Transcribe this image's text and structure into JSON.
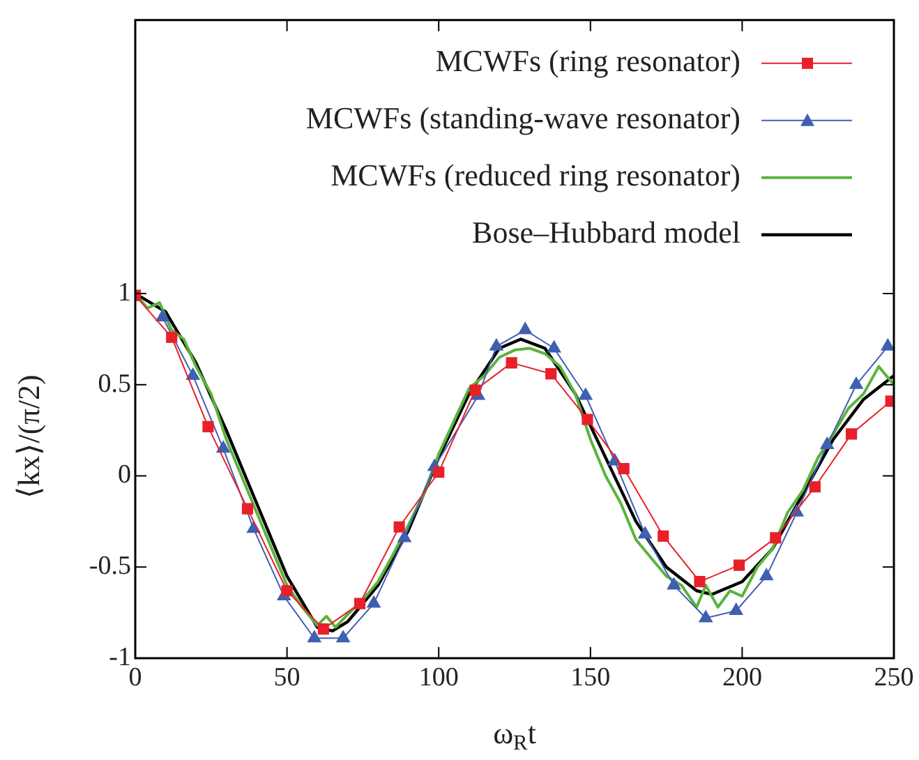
{
  "chart_data": {
    "type": "line",
    "xlabel": "ω$_{R}$t",
    "ylabel": "⟨kx⟩/(π/2)",
    "xlim": [
      0,
      250
    ],
    "xticks": [
      0,
      50,
      100,
      150,
      200,
      250
    ],
    "ylim": [
      -1,
      2.5
    ],
    "yticks": [
      -1,
      -0.5,
      0,
      0.5,
      1
    ],
    "grid": false,
    "legend": "top right",
    "series": [
      {
        "name": "MCWFs (ring resonator)",
        "color": "#e8202a",
        "marker": "square",
        "x": [
          0,
          12,
          24,
          37,
          50,
          62,
          74,
          87,
          100,
          112,
          124,
          137,
          149,
          161,
          174,
          186,
          199,
          211,
          224,
          236,
          249
        ],
        "values": [
          0.99,
          0.76,
          0.27,
          -0.18,
          -0.63,
          -0.84,
          -0.7,
          -0.28,
          0.02,
          0.47,
          0.62,
          0.56,
          0.31,
          0.04,
          -0.33,
          -0.58,
          -0.49,
          -0.34,
          -0.06,
          0.23,
          0.41
        ]
      },
      {
        "name": "MCWFs (standing-wave resonator)",
        "color": "#3f5fb0",
        "marker": "triangle",
        "x": [
          9,
          19,
          29,
          39,
          49,
          59,
          68.5,
          78.6,
          88.7,
          98.6,
          113,
          119,
          128.5,
          138,
          148.4,
          158,
          168,
          177.5,
          188,
          198,
          208,
          218,
          228,
          237.6,
          248
        ],
        "values": [
          0.87,
          0.55,
          0.15,
          -0.29,
          -0.66,
          -0.89,
          -0.89,
          -0.7,
          -0.34,
          0.05,
          0.44,
          0.71,
          0.8,
          0.7,
          0.44,
          0.08,
          -0.32,
          -0.6,
          -0.78,
          -0.74,
          -0.55,
          -0.2,
          0.17,
          0.5,
          0.71
        ]
      },
      {
        "name": "MCWFs (reduced ring resonator)",
        "color": "#5ab43c",
        "marker": "none",
        "x": [
          0,
          4,
          8,
          12,
          16,
          20,
          25,
          30,
          35,
          40,
          45,
          50,
          55,
          60,
          63,
          66,
          70,
          75,
          80,
          85,
          90,
          95,
          100,
          105,
          110,
          115,
          120,
          125,
          130,
          135,
          140,
          145,
          150,
          155,
          160,
          165,
          170,
          175,
          180,
          185,
          188,
          192,
          196,
          200,
          205,
          210,
          215,
          220,
          225,
          230,
          235,
          240,
          245,
          250
        ],
        "values": [
          1,
          0.92,
          0.95,
          0.8,
          0.75,
          0.6,
          0.45,
          0.2,
          0,
          -0.2,
          -0.4,
          -0.6,
          -0.72,
          -0.82,
          -0.77,
          -0.83,
          -0.76,
          -0.68,
          -0.58,
          -0.43,
          -0.27,
          -0.1,
          0.12,
          0.3,
          0.48,
          0.55,
          0.65,
          0.69,
          0.7,
          0.67,
          0.6,
          0.45,
          0.2,
          0,
          -0.15,
          -0.35,
          -0.45,
          -0.55,
          -0.6,
          -0.72,
          -0.6,
          -0.72,
          -0.63,
          -0.66,
          -0.5,
          -0.4,
          -0.2,
          -0.08,
          0.1,
          0.23,
          0.37,
          0.45,
          0.6,
          0.5
        ]
      },
      {
        "name": "Bose–Hubbard model",
        "color": "#000000",
        "marker": "none",
        "x": [
          0,
          10,
          20,
          30,
          40,
          50,
          60,
          65,
          70,
          80,
          90,
          100,
          110,
          120,
          127,
          135,
          145,
          155,
          165,
          175,
          185,
          190,
          200,
          210,
          220,
          230,
          240,
          250
        ],
        "values": [
          1,
          0.9,
          0.62,
          0.25,
          -0.15,
          -0.55,
          -0.83,
          -0.85,
          -0.8,
          -0.6,
          -0.3,
          0.1,
          0.45,
          0.7,
          0.75,
          0.7,
          0.45,
          0.1,
          -0.25,
          -0.5,
          -0.63,
          -0.65,
          -0.58,
          -0.4,
          -0.1,
          0.2,
          0.42,
          0.55
        ]
      }
    ]
  }
}
